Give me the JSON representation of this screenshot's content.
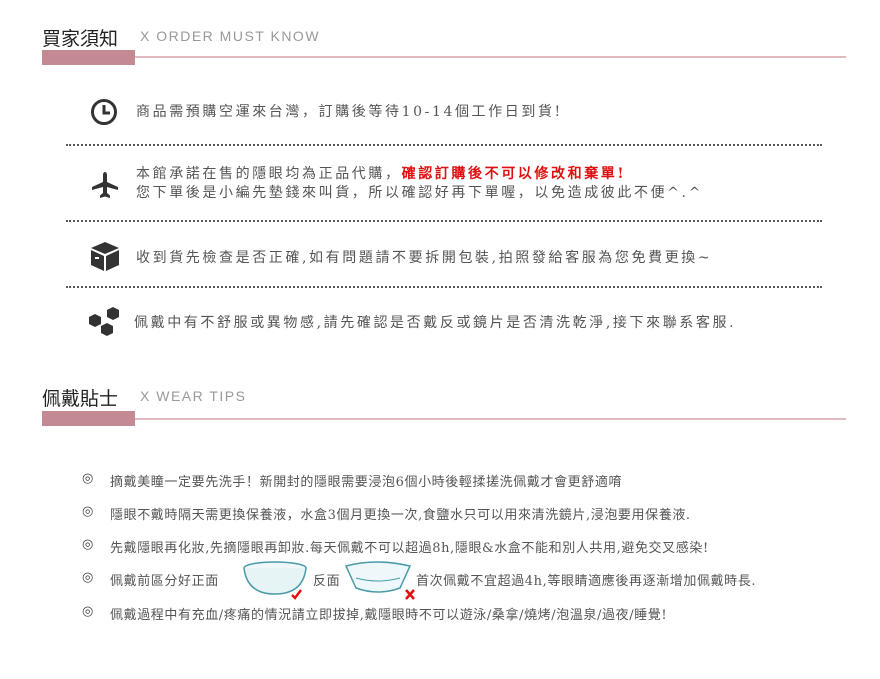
{
  "order": {
    "title": "買家須知",
    "sub": "X  ORDER MUST KNOW",
    "items": [
      {
        "icon": "clock-icon",
        "text": "商品需預購空運來台灣，訂購後等待10-14個工作日到貨!"
      },
      {
        "icon": "airplane-icon",
        "text": "本館承諾在售的隱眼均為正品代購，",
        "highlight": "確認訂購後不可以修改和棄單!",
        "text2": "您下單後是小編先墊錢來叫貨，所以確認好再下單喔，以免造成彼此不便^.^"
      },
      {
        "icon": "box-icon",
        "text": "收到貨先檢查是否正確,如有問題請不要拆開包裝,拍照發給客服為您免費更換~"
      },
      {
        "icon": "cubes-icon",
        "text": "佩戴中有不舒服或異物感,請先確認是否戴反或鏡片是否清洗乾淨,接下來聯系客服."
      }
    ]
  },
  "wear": {
    "title": "佩戴貼士",
    "sub": "X  WEAR TIPS",
    "bullet": "◎",
    "tips": [
      "摘戴美瞳一定要先洗手！新開封的隱眼需要浸泡6個小時後輕揉搓洗佩戴才會更舒適唷",
      "隱眼不戴時隔天需更換保養液，水盒3個月更換一次,食鹽水只可以用來清洗鏡片,浸泡要用保養液.",
      "先戴隱眼再化妝,先摘隱眼再卸妝.每天佩戴不可以超過8h,隱眼&水盒不能和別人共用,避免交叉感染!"
    ],
    "tip4": {
      "a": "佩戴前區分好正面",
      "b": "反面",
      "c": "首次佩戴不宜超過4h,等眼睛適應後再逐漸增加佩戴時長."
    },
    "tip5": "佩戴過程中有充血/疼痛的情況請立即拔掉,戴隱眼時不可以遊泳/桑拿/燒烤/泡溫泉/過夜/睡覺!"
  },
  "colors": {
    "accent": "#c48a94",
    "rule": "#e2b9be",
    "warning": "#e01010"
  }
}
